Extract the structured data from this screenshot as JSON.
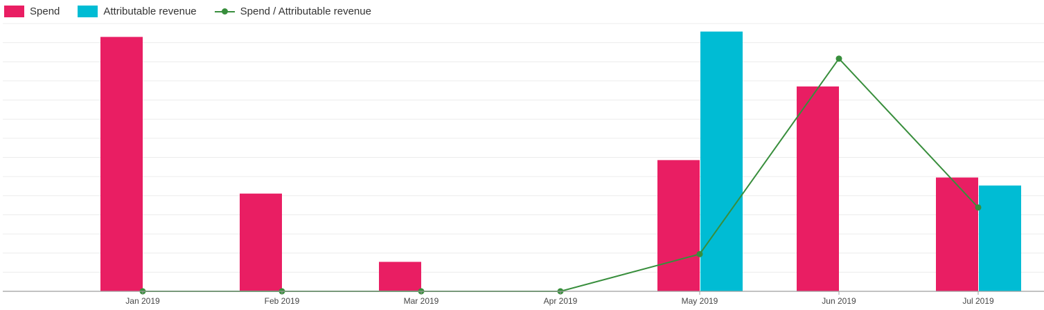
{
  "chart_data": {
    "type": "bar",
    "title": "",
    "xlabel": "",
    "ylabel": "",
    "categories": [
      "Jan 2019",
      "Feb 2019",
      "Mar 2019",
      "Apr 2019",
      "May 2019",
      "Jun 2019",
      "Jul 2019"
    ],
    "series": [
      {
        "name": "Spend",
        "type": "bar",
        "color": "#e91e63",
        "values": [
          95,
          36.5,
          11,
          0,
          49,
          76.5,
          42.5
        ]
      },
      {
        "name": "Attributable revenue",
        "type": "bar",
        "color": "#00bcd4",
        "values": [
          0,
          0,
          0,
          0,
          97,
          0,
          39.5
        ]
      },
      {
        "name": "Spend / Attributable revenue",
        "type": "line",
        "color": "#388e3c",
        "values": [
          0,
          0,
          0,
          0,
          0.139,
          0.869,
          0.313
        ]
      }
    ],
    "secondary_series_ylim": [
      0,
      1
    ],
    "ylim": [
      0,
      100
    ],
    "grid": true,
    "legend_position": "top-left"
  }
}
